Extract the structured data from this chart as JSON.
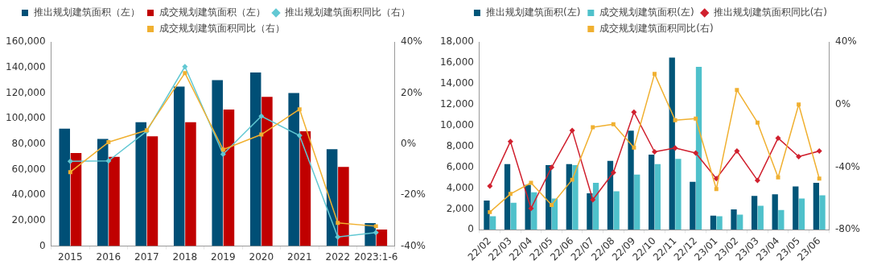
{
  "chart_data": [
    {
      "type": "bar",
      "categories": [
        "2015",
        "2016",
        "2017",
        "2018",
        "2019",
        "2020",
        "2021",
        "2022",
        "2023:1-6"
      ],
      "series": [
        {
          "name": "推出规划建筑面积（左）",
          "color": "#004f76",
          "values": [
            92000,
            84000,
            97000,
            125000,
            130000,
            136000,
            120000,
            76000,
            18000
          ]
        },
        {
          "name": "成交规划建筑面积（左）",
          "color": "#c00000",
          "values": [
            73000,
            70000,
            86000,
            97000,
            107000,
            117000,
            90000,
            62000,
            13000
          ]
        },
        {
          "name": "推出规划建筑面积同比（右）",
          "type": "line",
          "axis": "y2",
          "marker": "diamond",
          "color": "#62c8d3",
          "values": [
            -6.8,
            -6.6,
            5,
            30.3,
            -4,
            10.9,
            3.3,
            -36.4,
            -34.7
          ]
        },
        {
          "name": "成交规划建筑面积同比（右）",
          "type": "line",
          "axis": "y2",
          "marker": "square",
          "color": "#f0b030",
          "values": [
            -11,
            0.7,
            5.4,
            27.8,
            -2.2,
            3.7,
            13.6,
            -30.9,
            -32.2
          ]
        }
      ],
      "ylim": [
        0,
        160000
      ],
      "yticks": [
        0,
        {
          "value": 20000,
          "label": "20,000"
        },
        {
          "value": 40000,
          "label": "40,000"
        },
        {
          "value": 60000,
          "label": "60,000"
        },
        {
          "value": 80000,
          "label": "80,000"
        },
        {
          "value": 100000,
          "label": "100,000"
        },
        {
          "value": 120000,
          "label": "120,000"
        },
        {
          "value": 140000,
          "label": "140,000"
        },
        {
          "value": 160000,
          "label": "160,000"
        }
      ],
      "y2lim": [
        -40,
        40
      ],
      "y2ticks": [
        {
          "value": -40,
          "label": "-40%"
        },
        {
          "value": -20,
          "label": "-20%"
        },
        {
          "value": 0,
          "label": "0%"
        },
        {
          "value": 20,
          "label": "20%"
        },
        {
          "value": 40,
          "label": "40%"
        }
      ],
      "legend": "top"
    },
    {
      "type": "bar",
      "categories": [
        "22/02",
        "22/03",
        "22/04",
        "22/05",
        "22/06",
        "22/07",
        "22/08",
        "22/09",
        "22/10",
        "22/11",
        "22/12",
        "23/01",
        "23/02",
        "23/03",
        "23/04",
        "23/05",
        "23/06"
      ],
      "series": [
        {
          "name": "推出规划建筑面积(左)",
          "color": "#005578",
          "values": [
            2800,
            6300,
            4300,
            6200,
            6300,
            3500,
            6600,
            9500,
            7200,
            16500,
            4600,
            1350,
            1950,
            3250,
            3400,
            4150,
            4500
          ]
        },
        {
          "name": "成交规划建筑面积(左)",
          "color": "#4fc1cb",
          "values": [
            1300,
            2600,
            3600,
            3000,
            6200,
            4500,
            3700,
            5300,
            6300,
            6800,
            15600,
            1300,
            1450,
            2300,
            1900,
            3000,
            3300
          ]
        },
        {
          "name": "推出规划建筑面积同比(右)",
          "type": "line",
          "axis": "y2",
          "marker": "diamond",
          "color": "#d0202e",
          "values": [
            -52,
            -23.6,
            -66.3,
            -40.1,
            -16.5,
            -60.8,
            -43.4,
            -4.9,
            -30.2,
            -27.7,
            -31,
            -47.3,
            -29.7,
            -48.4,
            -21.4,
            -33.3,
            -29.7
          ]
        },
        {
          "name": "成交规划建筑面积同比(右)",
          "type": "line",
          "axis": "y2",
          "marker": "square",
          "color": "#f0b030",
          "values": [
            -68.7,
            -57.1,
            -50,
            -64.1,
            -48,
            -14.5,
            -12.6,
            -27.5,
            19.6,
            -10,
            -9,
            -54,
            9.3,
            -11.5,
            -46.5,
            0,
            -47.3
          ]
        }
      ],
      "ylim": [
        0,
        18000
      ],
      "yticks": [
        0,
        {
          "value": 2000,
          "label": "2,000"
        },
        {
          "value": 4000,
          "label": "4,000"
        },
        {
          "value": 6000,
          "label": "6,000"
        },
        {
          "value": 8000,
          "label": "8,000"
        },
        {
          "value": 10000,
          "label": "10,000"
        },
        {
          "value": 12000,
          "label": "12,000"
        },
        {
          "value": 14000,
          "label": "14,000"
        },
        {
          "value": 16000,
          "label": "16,000"
        },
        {
          "value": 18000,
          "label": "18,000"
        }
      ],
      "y2lim": [
        -80,
        40
      ],
      "y2ticks": [
        {
          "value": -80,
          "label": "-80%"
        },
        {
          "value": -40,
          "label": "-40%"
        },
        {
          "value": 0,
          "label": "0%"
        },
        {
          "value": 40,
          "label": "40%"
        }
      ],
      "legend": "top"
    }
  ]
}
